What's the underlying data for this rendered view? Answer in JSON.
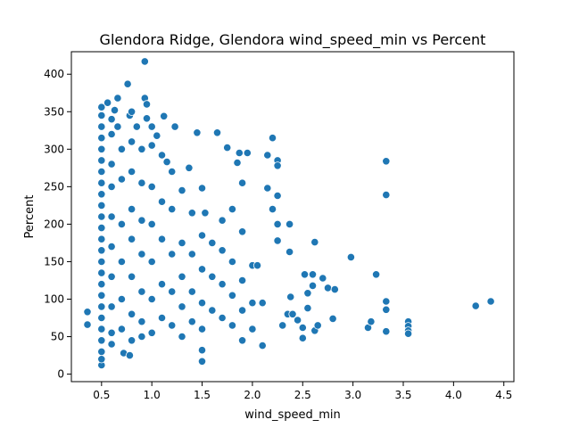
{
  "chart_data": {
    "type": "scatter",
    "title": "Glendora Ridge, Glendora wind_speed_min vs Percent",
    "xlabel": "wind_speed_min",
    "ylabel": "Percent",
    "xlim": [
      0.2,
      4.6
    ],
    "ylim": [
      -10,
      430
    ],
    "xticks": [
      0.5,
      1.0,
      1.5,
      2.0,
      2.5,
      3.0,
      3.5,
      4.0,
      4.5
    ],
    "xtick_labels": [
      "0.5",
      "1.0",
      "1.5",
      "2.0",
      "2.5",
      "3.0",
      "3.5",
      "4.0",
      "4.5"
    ],
    "yticks": [
      0,
      50,
      100,
      150,
      200,
      250,
      300,
      350,
      400
    ],
    "ytick_labels": [
      "0",
      "50",
      "100",
      "150",
      "200",
      "250",
      "300",
      "350",
      "400"
    ],
    "grid": false,
    "marker_color": "#1f77b4",
    "points": [
      [
        0.36,
        83
      ],
      [
        0.36,
        66
      ],
      [
        0.5,
        12
      ],
      [
        0.5,
        20
      ],
      [
        0.5,
        30
      ],
      [
        0.5,
        45
      ],
      [
        0.5,
        60
      ],
      [
        0.5,
        75
      ],
      [
        0.5,
        90
      ],
      [
        0.5,
        105
      ],
      [
        0.5,
        120
      ],
      [
        0.5,
        135
      ],
      [
        0.5,
        150
      ],
      [
        0.5,
        165
      ],
      [
        0.5,
        180
      ],
      [
        0.5,
        195
      ],
      [
        0.5,
        210
      ],
      [
        0.5,
        225
      ],
      [
        0.5,
        240
      ],
      [
        0.5,
        255
      ],
      [
        0.5,
        270
      ],
      [
        0.5,
        285
      ],
      [
        0.5,
        300
      ],
      [
        0.5,
        315
      ],
      [
        0.5,
        330
      ],
      [
        0.5,
        345
      ],
      [
        0.5,
        356
      ],
      [
        0.56,
        362
      ],
      [
        0.6,
        340
      ],
      [
        0.6,
        320
      ],
      [
        0.6,
        280
      ],
      [
        0.6,
        250
      ],
      [
        0.6,
        210
      ],
      [
        0.6,
        170
      ],
      [
        0.6,
        130
      ],
      [
        0.6,
        90
      ],
      [
        0.6,
        55
      ],
      [
        0.6,
        40
      ],
      [
        0.63,
        352
      ],
      [
        0.66,
        368
      ],
      [
        0.66,
        330
      ],
      [
        0.7,
        300
      ],
      [
        0.7,
        260
      ],
      [
        0.7,
        200
      ],
      [
        0.7,
        150
      ],
      [
        0.7,
        100
      ],
      [
        0.7,
        60
      ],
      [
        0.72,
        28
      ],
      [
        0.76,
        387
      ],
      [
        0.78,
        345
      ],
      [
        0.78,
        25
      ],
      [
        0.8,
        350
      ],
      [
        0.8,
        310
      ],
      [
        0.8,
        270
      ],
      [
        0.8,
        220
      ],
      [
        0.8,
        180
      ],
      [
        0.8,
        130
      ],
      [
        0.8,
        80
      ],
      [
        0.8,
        45
      ],
      [
        0.85,
        330
      ],
      [
        0.9,
        300
      ],
      [
        0.9,
        255
      ],
      [
        0.9,
        205
      ],
      [
        0.9,
        160
      ],
      [
        0.9,
        110
      ],
      [
        0.9,
        70
      ],
      [
        0.9,
        50
      ],
      [
        0.93,
        417
      ],
      [
        0.93,
        368
      ],
      [
        0.95,
        341
      ],
      [
        0.95,
        360
      ],
      [
        1.0,
        330
      ],
      [
        1.0,
        305
      ],
      [
        1.0,
        250
      ],
      [
        1.0,
        200
      ],
      [
        1.0,
        150
      ],
      [
        1.0,
        100
      ],
      [
        1.0,
        55
      ],
      [
        1.05,
        318
      ],
      [
        1.1,
        292
      ],
      [
        1.1,
        230
      ],
      [
        1.1,
        180
      ],
      [
        1.1,
        120
      ],
      [
        1.1,
        75
      ],
      [
        1.12,
        344
      ],
      [
        1.15,
        283
      ],
      [
        1.2,
        270
      ],
      [
        1.2,
        220
      ],
      [
        1.2,
        160
      ],
      [
        1.2,
        110
      ],
      [
        1.2,
        65
      ],
      [
        1.23,
        330
      ],
      [
        1.3,
        245
      ],
      [
        1.3,
        175
      ],
      [
        1.3,
        130
      ],
      [
        1.3,
        90
      ],
      [
        1.3,
        50
      ],
      [
        1.37,
        275
      ],
      [
        1.4,
        215
      ],
      [
        1.4,
        160
      ],
      [
        1.4,
        110
      ],
      [
        1.4,
        70
      ],
      [
        1.45,
        322
      ],
      [
        1.5,
        248
      ],
      [
        1.5,
        185
      ],
      [
        1.5,
        140
      ],
      [
        1.5,
        95
      ],
      [
        1.5,
        60
      ],
      [
        1.5,
        32
      ],
      [
        1.5,
        17
      ],
      [
        1.53,
        215
      ],
      [
        1.6,
        175
      ],
      [
        1.6,
        130
      ],
      [
        1.6,
        85
      ],
      [
        1.65,
        322
      ],
      [
        1.7,
        205
      ],
      [
        1.7,
        165
      ],
      [
        1.7,
        120
      ],
      [
        1.7,
        75
      ],
      [
        1.75,
        302
      ],
      [
        1.8,
        220
      ],
      [
        1.8,
        150
      ],
      [
        1.8,
        105
      ],
      [
        1.8,
        65
      ],
      [
        1.85,
        282
      ],
      [
        1.87,
        295
      ],
      [
        1.9,
        255
      ],
      [
        1.9,
        190
      ],
      [
        1.9,
        125
      ],
      [
        1.9,
        85
      ],
      [
        1.9,
        45
      ],
      [
        1.95,
        295
      ],
      [
        2.0,
        145
      ],
      [
        2.0,
        95
      ],
      [
        2.0,
        60
      ],
      [
        2.05,
        145
      ],
      [
        2.1,
        95
      ],
      [
        2.1,
        38
      ],
      [
        2.15,
        292
      ],
      [
        2.15,
        248
      ],
      [
        2.2,
        315
      ],
      [
        2.2,
        220
      ],
      [
        2.25,
        285
      ],
      [
        2.25,
        278
      ],
      [
        2.25,
        238
      ],
      [
        2.25,
        200
      ],
      [
        2.25,
        178
      ],
      [
        2.3,
        65
      ],
      [
        2.35,
        80
      ],
      [
        2.37,
        200
      ],
      [
        2.37,
        163
      ],
      [
        2.38,
        103
      ],
      [
        2.4,
        80
      ],
      [
        2.45,
        72
      ],
      [
        2.5,
        62
      ],
      [
        2.5,
        48
      ],
      [
        2.52,
        133
      ],
      [
        2.55,
        108
      ],
      [
        2.55,
        88
      ],
      [
        2.6,
        133
      ],
      [
        2.6,
        118
      ],
      [
        2.62,
        176
      ],
      [
        2.62,
        58
      ],
      [
        2.65,
        65
      ],
      [
        2.7,
        128
      ],
      [
        2.75,
        115
      ],
      [
        2.8,
        74
      ],
      [
        2.82,
        113
      ],
      [
        2.98,
        156
      ],
      [
        3.15,
        62
      ],
      [
        3.18,
        70
      ],
      [
        3.23,
        133
      ],
      [
        3.33,
        284
      ],
      [
        3.33,
        239
      ],
      [
        3.33,
        97
      ],
      [
        3.33,
        86
      ],
      [
        3.33,
        57
      ],
      [
        3.55,
        70
      ],
      [
        3.55,
        64
      ],
      [
        3.55,
        58
      ],
      [
        3.55,
        54
      ],
      [
        4.22,
        91
      ],
      [
        4.37,
        97
      ]
    ]
  }
}
